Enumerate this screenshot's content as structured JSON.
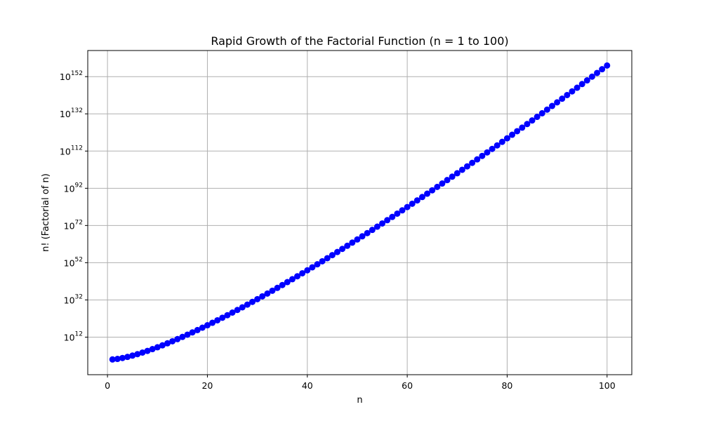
{
  "chart_data": {
    "type": "line",
    "title": "Rapid Growth of the Factorial Function (n = 1 to 100)",
    "xlabel": "n",
    "ylabel": "n! (Factorial of n)",
    "xlim": [
      -3.95,
      104.95
    ],
    "ylim_log10": [
      -8.18,
      166.03
    ],
    "yscale": "log",
    "grid": true,
    "legend": "none",
    "x_ticks": [
      0,
      20,
      40,
      60,
      80,
      100
    ],
    "x_tick_labels": [
      "0",
      "20",
      "40",
      "60",
      "80",
      "100"
    ],
    "y_ticks_log10": [
      12,
      32,
      52,
      72,
      92,
      112,
      132,
      152
    ],
    "y_tick_labels": [
      {
        "base": "10",
        "exp": "12"
      },
      {
        "base": "10",
        "exp": "32"
      },
      {
        "base": "10",
        "exp": "52"
      },
      {
        "base": "10",
        "exp": "72"
      },
      {
        "base": "10",
        "exp": "92"
      },
      {
        "base": "10",
        "exp": "112"
      },
      {
        "base": "10",
        "exp": "132"
      },
      {
        "base": "10",
        "exp": "152"
      }
    ],
    "marker": "circle",
    "series": [
      {
        "color": "#0000ff",
        "x": [
          1,
          2,
          3,
          4,
          5,
          6,
          7,
          8,
          9,
          10,
          11,
          12,
          13,
          14,
          15,
          16,
          17,
          18,
          19,
          20,
          21,
          22,
          23,
          24,
          25,
          26,
          27,
          28,
          29,
          30,
          31,
          32,
          33,
          34,
          35,
          36,
          37,
          38,
          39,
          40,
          41,
          42,
          43,
          44,
          45,
          46,
          47,
          48,
          49,
          50,
          51,
          52,
          53,
          54,
          55,
          56,
          57,
          58,
          59,
          60,
          61,
          62,
          63,
          64,
          65,
          66,
          67,
          68,
          69,
          70,
          71,
          72,
          73,
          74,
          75,
          76,
          77,
          78,
          79,
          80,
          81,
          82,
          83,
          84,
          85,
          86,
          87,
          88,
          89,
          90,
          91,
          92,
          93,
          94,
          95,
          96,
          97,
          98,
          99,
          100
        ],
        "y_log10": [
          0.0,
          0.301,
          0.778,
          1.38,
          2.079,
          2.857,
          3.702,
          4.606,
          5.56,
          6.56,
          7.601,
          8.68,
          9.794,
          10.94,
          12.116,
          13.321,
          14.551,
          15.806,
          17.085,
          18.386,
          19.708,
          21.051,
          22.413,
          23.794,
          25.191,
          26.606,
          28.037,
          29.484,
          30.947,
          32.424,
          33.915,
          35.42,
          36.939,
          38.47,
          40.014,
          41.571,
          43.139,
          44.719,
          46.31,
          47.912,
          49.525,
          51.148,
          52.782,
          54.425,
          56.078,
          57.741,
          59.413,
          61.094,
          62.784,
          64.483,
          66.191,
          67.907,
          69.631,
          71.363,
          73.103,
          74.851,
          76.606,
          78.37,
          80.14,
          81.918,
          83.704,
          85.497,
          87.296,
          89.103,
          90.916,
          92.736,
          94.562,
          96.395,
          98.234,
          100.079,
          101.93,
          103.787,
          105.65,
          107.519,
          109.394,
          111.275,
          113.161,
          115.053,
          116.951,
          118.854,
          120.763,
          122.677,
          124.596,
          126.52,
          128.45,
          130.384,
          132.324,
          134.268,
          136.218,
          138.172,
          140.131,
          142.095,
          144.064,
          146.037,
          148.015,
          149.997,
          151.984,
          153.975,
          155.971,
          157.97
        ]
      }
    ]
  }
}
